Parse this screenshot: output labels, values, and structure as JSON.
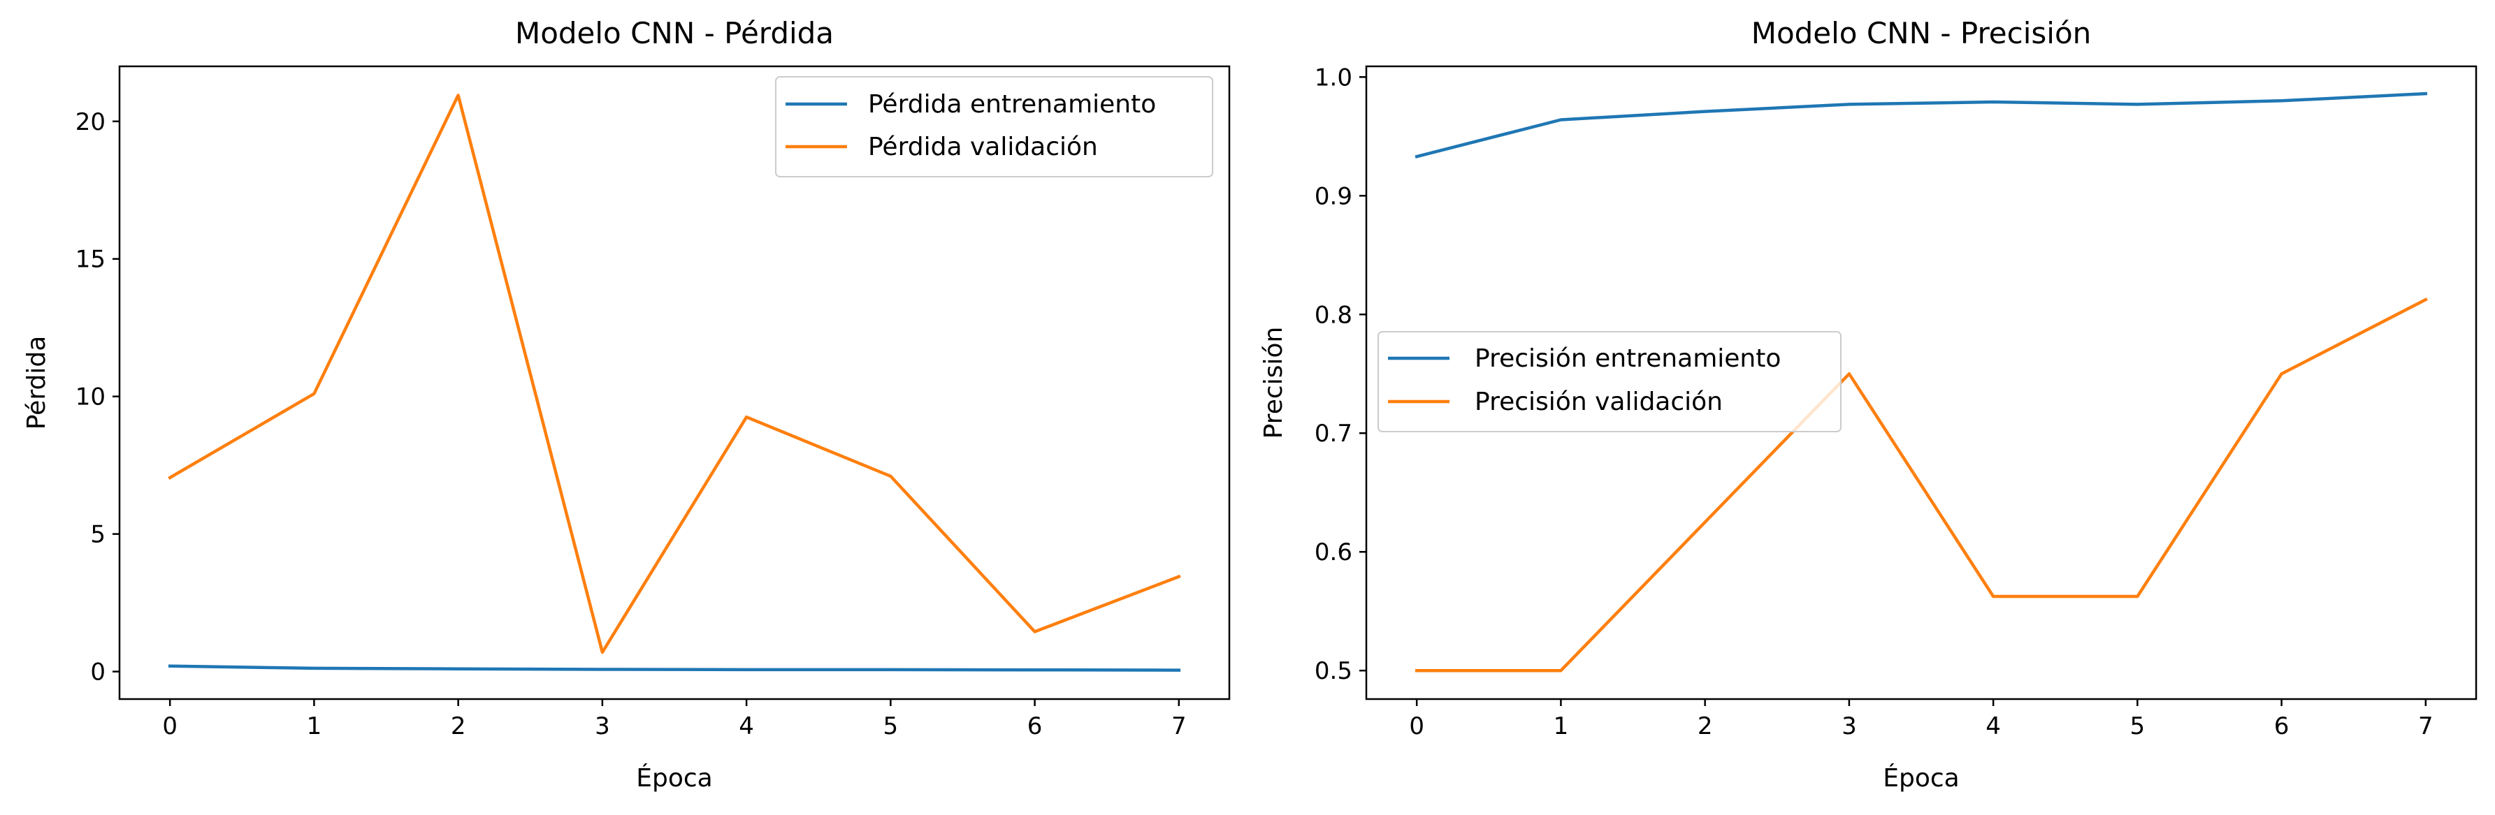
{
  "chart_data": [
    {
      "type": "line",
      "title": "Modelo CNN - Pérdida",
      "xlabel": "Época",
      "ylabel": "Pérdida",
      "x": [
        0,
        1,
        2,
        3,
        4,
        5,
        6,
        7
      ],
      "xticks": [
        "0",
        "1",
        "2",
        "3",
        "4",
        "5",
        "6",
        "7"
      ],
      "yticks": [
        "0",
        "5",
        "10",
        "15",
        "20"
      ],
      "xlim": [
        -0.35,
        7.35
      ],
      "ylim": [
        -1.0,
        22.0
      ],
      "grid": false,
      "legend_position": "top-right",
      "series": [
        {
          "name": "Pérdida entrenamiento",
          "color": "#1f77b4",
          "values": [
            0.2,
            0.12,
            0.1,
            0.08,
            0.07,
            0.07,
            0.06,
            0.05
          ]
        },
        {
          "name": "Pérdida validación",
          "color": "#ff7f0e",
          "values": [
            7.05,
            10.1,
            20.95,
            0.7,
            9.25,
            7.1,
            1.45,
            3.45
          ]
        }
      ]
    },
    {
      "type": "line",
      "title": "Modelo CNN - Precisión",
      "xlabel": "Época",
      "ylabel": "Precisión",
      "x": [
        0,
        1,
        2,
        3,
        4,
        5,
        6,
        7
      ],
      "xticks": [
        "0",
        "1",
        "2",
        "3",
        "4",
        "5",
        "6",
        "7"
      ],
      "yticks": [
        "0.5",
        "0.6",
        "0.7",
        "0.8",
        "0.9",
        "1.0"
      ],
      "xlim": [
        -0.35,
        7.35
      ],
      "ylim": [
        0.476,
        1.009
      ],
      "grid": false,
      "legend_position": "center-left",
      "series": [
        {
          "name": "Precisión entrenamiento",
          "color": "#1f77b4",
          "values": [
            0.933,
            0.964,
            0.971,
            0.977,
            0.979,
            0.977,
            0.98,
            0.986
          ]
        },
        {
          "name": "Precisión validación",
          "color": "#ff7f0e",
          "values": [
            0.5,
            0.5,
            0.625,
            0.75,
            0.5625,
            0.5625,
            0.75,
            0.8125
          ]
        }
      ]
    }
  ]
}
